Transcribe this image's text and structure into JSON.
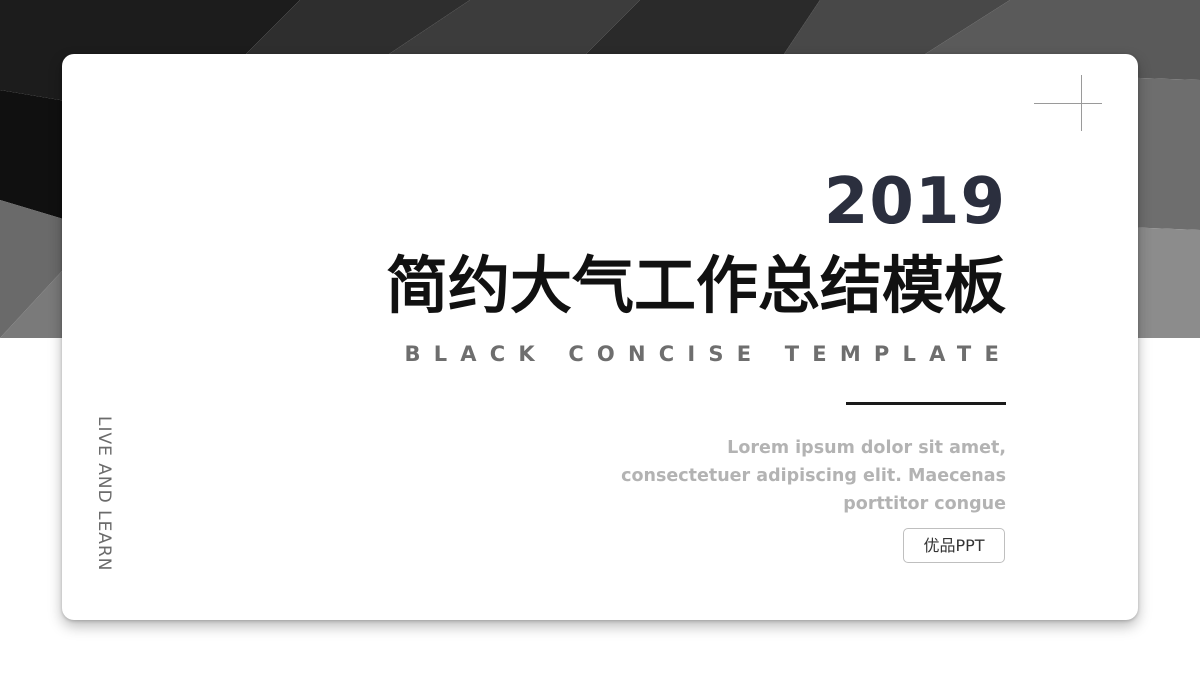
{
  "slide": {
    "year": "2019",
    "title": "简约大气工作总结模板",
    "subtitle": "BLACK CONCISE TEMPLATE",
    "description_lines": [
      "Lorem ipsum dolor sit amet,",
      "consectetuer adipiscing elit. Maecenas",
      "porttitor congue"
    ],
    "brand_badge": "优品PPT",
    "side_text": "LIVE AND LEARN"
  },
  "colors": {
    "year": "#2b2f3e",
    "title": "#111111",
    "subtitle": "#6e6e6e",
    "description": "#b3b3b3",
    "accent_line": "#1a1a1a"
  },
  "icons": {
    "corner_mark": "crosshair-icon"
  }
}
